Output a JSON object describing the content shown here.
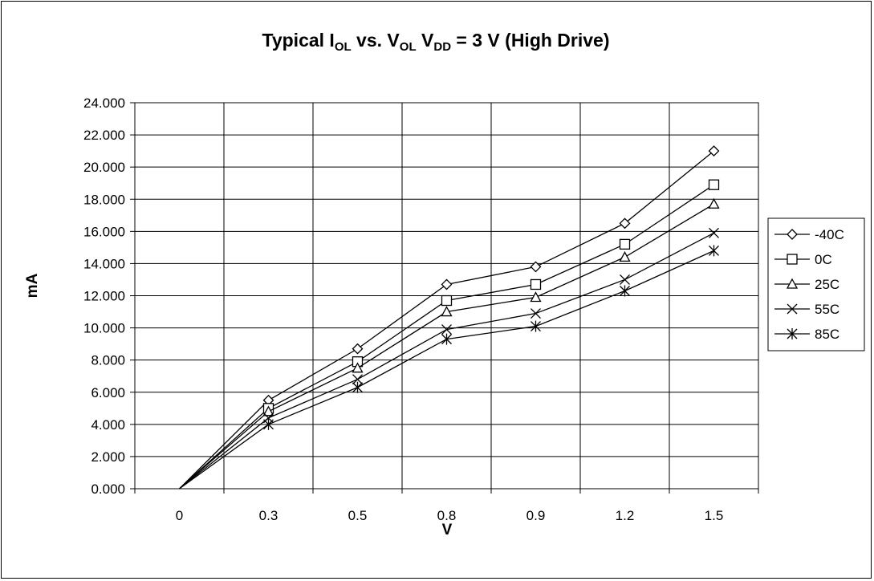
{
  "chart_data": {
    "type": "line",
    "title": {
      "parts": [
        {
          "text": "Typical I",
          "sub": false
        },
        {
          "text": "OL",
          "sub": true
        },
        {
          "text": " vs. V",
          "sub": false
        },
        {
          "text": "OL",
          "sub": true
        },
        {
          "text": " V",
          "sub": false
        },
        {
          "text": "DD",
          "sub": true
        },
        {
          "text": " = 3 V (High Drive)",
          "sub": false
        }
      ]
    },
    "xlabel": "V",
    "ylabel": "mA",
    "categories": [
      "0",
      "0.3",
      "0.5",
      "0.8",
      "0.9",
      "1.2",
      "1.5"
    ],
    "ylim": [
      0,
      24
    ],
    "ytick_step": 2,
    "ytick_decimals": 3,
    "grid": true,
    "legend_position": "right",
    "series": [
      {
        "name": "-40C",
        "marker": "diamond",
        "values": [
          0,
          5.5,
          8.7,
          12.7,
          13.8,
          16.5,
          21.0
        ]
      },
      {
        "name": "0C",
        "marker": "square",
        "values": [
          0,
          5.0,
          7.9,
          11.7,
          12.7,
          15.2,
          18.9
        ]
      },
      {
        "name": "25C",
        "marker": "triangle",
        "values": [
          0,
          4.8,
          7.5,
          11.0,
          11.9,
          14.4,
          17.7
        ]
      },
      {
        "name": "55C",
        "marker": "x",
        "values": [
          0,
          4.4,
          6.8,
          9.9,
          10.9,
          13.0,
          15.9
        ]
      },
      {
        "name": "85C",
        "marker": "star",
        "values": [
          0,
          4.0,
          6.3,
          9.3,
          10.1,
          12.3,
          14.8
        ]
      }
    ],
    "colors": {
      "line": "#000000",
      "grid": "#000000",
      "background": "#ffffff"
    }
  }
}
